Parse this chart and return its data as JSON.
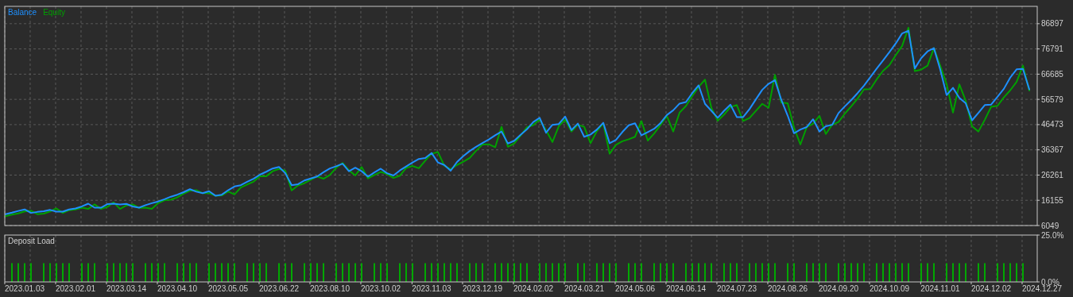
{
  "chart_data": [
    {
      "type": "line",
      "legend": "top left",
      "grid": true,
      "tick_labels": "y",
      "ylim": [
        6049,
        93845
      ],
      "yticks": [
        6049,
        16155,
        26261,
        36367,
        46473,
        56579,
        66685,
        76791,
        86897
      ],
      "categories": [
        null,
        null,
        null,
        "2023.01.03",
        null,
        null,
        null,
        null,
        null,
        null,
        null,
        "2023.02.01",
        null,
        null,
        null,
        null,
        null,
        null,
        null,
        "2023.03.14",
        null,
        null,
        null,
        null,
        null,
        null,
        null,
        "2023.04.10",
        null,
        null,
        null,
        null,
        null,
        null,
        null,
        "2023.05.05",
        null,
        null,
        null,
        null,
        null,
        null,
        null,
        "2023.06.22",
        null,
        null,
        null,
        null,
        null,
        null,
        null,
        "2023.08.10",
        null,
        null,
        null,
        null,
        null,
        null,
        null,
        "2023.10.02",
        null,
        null,
        null,
        null,
        null,
        null,
        null,
        "2023.11.03",
        null,
        null,
        null,
        null,
        null,
        null,
        null,
        "2023.12.19",
        null,
        null,
        null,
        null,
        null,
        null,
        null,
        "2024.02.02",
        null,
        null,
        null,
        null,
        null,
        null,
        null,
        "2024.03.21",
        null,
        null,
        null,
        null,
        null,
        null,
        null,
        "2024.05.06",
        null,
        null,
        null,
        null,
        null,
        null,
        null,
        "2024.06.14",
        null,
        null,
        null,
        null,
        null,
        null,
        null,
        "2024.07.23",
        null,
        null,
        null,
        null,
        null,
        null,
        null,
        "2024.08.26",
        null,
        null,
        null,
        null,
        null,
        null,
        null,
        "2024.09.20",
        null,
        null,
        null,
        null,
        null,
        null,
        null,
        "2024.10.09",
        null,
        null,
        null,
        null,
        null,
        null,
        null,
        "2024.11.01",
        null,
        null,
        null,
        null,
        null,
        null,
        null,
        "2024.12.02",
        null,
        null,
        null,
        null,
        null,
        null,
        null,
        "2024.12.27",
        null
      ],
      "series": [
        {
          "name": "Balance",
          "color": "#1e90ff",
          "values": [
            10600,
            11200,
            11900,
            12500,
            11100,
            11500,
            11800,
            12300,
            11600,
            11600,
            12500,
            12900,
            13700,
            14800,
            13200,
            13200,
            14600,
            14800,
            14500,
            14700,
            13700,
            13200,
            14200,
            15000,
            15700,
            16600,
            17600,
            18400,
            19400,
            20600,
            19600,
            19000,
            19800,
            18000,
            18400,
            20200,
            21700,
            22200,
            23600,
            24800,
            26400,
            27600,
            28900,
            29500,
            27000,
            22200,
            22600,
            24100,
            24900,
            25700,
            27400,
            28900,
            29800,
            30800,
            27800,
            29200,
            27800,
            25600,
            27300,
            28800,
            27000,
            26100,
            28100,
            29700,
            31300,
            32700,
            33100,
            35100,
            31300,
            30300,
            28000,
            31500,
            33900,
            35900,
            37600,
            39100,
            40500,
            42200,
            43700,
            38900,
            40000,
            42400,
            44600,
            47500,
            49200,
            43200,
            46400,
            46700,
            49700,
            44300,
            46900,
            41600,
            42500,
            44500,
            47200,
            39000,
            40400,
            43500,
            46200,
            47000,
            42200,
            43500,
            44800,
            47100,
            50300,
            52200,
            54900,
            55500,
            59100,
            62200,
            54800,
            52000,
            49200,
            52000,
            54500,
            49500,
            49500,
            52700,
            56600,
            60400,
            62800,
            64300,
            56400,
            50100,
            43000,
            44500,
            45500,
            48600,
            43700,
            45800,
            46400,
            51100,
            53800,
            56300,
            59100,
            62100,
            65500,
            68900,
            72200,
            75500,
            79000,
            83000,
            84100,
            69000,
            73100,
            75800,
            77100,
            68500,
            58300,
            61200,
            57200,
            55000,
            48200,
            51200,
            54300,
            54500,
            57600,
            60800,
            65300,
            68600,
            68800,
            60600,
            null,
            null,
            null
          ]
        },
        {
          "name": "Equity",
          "color": "#00a000",
          "values": [
            9800,
            10400,
            10900,
            11700,
            12000,
            10600,
            10800,
            11700,
            12900,
            11100,
            12200,
            12500,
            13200,
            12700,
            14500,
            12700,
            13500,
            15300,
            12700,
            14100,
            14500,
            13100,
            13200,
            12700,
            15000,
            16200,
            16400,
            17300,
            18800,
            20000,
            20200,
            19000,
            19000,
            18000,
            18100,
            19700,
            18500,
            21300,
            22500,
            23600,
            25800,
            25800,
            27800,
            28700,
            28000,
            20100,
            22100,
            23000,
            24400,
            25700,
            24800,
            26300,
            29200,
            31100,
            28200,
            26100,
            29500,
            24900,
            26300,
            27500,
            26700,
            25100,
            26000,
            29100,
            29900,
            29000,
            32000,
            34800,
            35500,
            30000,
            28600,
            30300,
            31600,
            33100,
            36000,
            38500,
            38600,
            37400,
            45600,
            37600,
            38900,
            42100,
            45400,
            46300,
            48500,
            44200,
            39500,
            45800,
            48500,
            43700,
            46400,
            45600,
            39000,
            43900,
            47000,
            34800,
            38400,
            39800,
            40600,
            41600,
            47900,
            40100,
            42900,
            46300,
            50000,
            43700,
            51300,
            53900,
            57900,
            61600,
            64500,
            53200,
            48000,
            50500,
            53500,
            54300,
            47900,
            49100,
            52000,
            54800,
            53200,
            66400,
            55300,
            55000,
            45300,
            38500,
            45500,
            46800,
            50000,
            42700,
            46400,
            47500,
            50900,
            53800,
            56900,
            60600,
            60700,
            64600,
            68000,
            70300,
            74300,
            78000,
            85300,
            67900,
            68500,
            70100,
            77100,
            70000,
            62700,
            51300,
            62600,
            56000,
            45800,
            43700,
            48400,
            53600,
            54000,
            57400,
            60200,
            63600,
            70100,
            60100,
            null,
            null,
            null
          ]
        }
      ]
    },
    {
      "type": "bar",
      "title": "Deposit Load",
      "grid": "x",
      "color": "#00a800",
      "ylim": [
        0,
        25
      ],
      "yticks": [
        {
          "value": 0,
          "label": "0.0%"
        },
        {
          "value": 25,
          "label": "25.0%"
        }
      ],
      "categories": [
        null,
        null,
        null,
        "2023.01.03",
        null,
        null,
        null,
        null,
        null,
        null,
        null,
        "2023.02.01",
        null,
        null,
        null,
        null,
        null,
        null,
        null,
        "2023.03.14",
        null,
        null,
        null,
        null,
        null,
        null,
        null,
        "2023.04.10",
        null,
        null,
        null,
        null,
        null,
        null,
        null,
        "2023.05.05",
        null,
        null,
        null,
        null,
        null,
        null,
        null,
        "2023.06.22",
        null,
        null,
        null,
        null,
        null,
        null,
        null,
        "2023.08.10",
        null,
        null,
        null,
        null,
        null,
        null,
        null,
        "2023.10.02",
        null,
        null,
        null,
        null,
        null,
        null,
        null,
        "2023.11.03",
        null,
        null,
        null,
        null,
        null,
        null,
        null,
        "2023.12.19",
        null,
        null,
        null,
        null,
        null,
        null,
        null,
        "2024.02.02",
        null,
        null,
        null,
        null,
        null,
        null,
        null,
        "2024.03.21",
        null,
        null,
        null,
        null,
        null,
        null,
        null,
        "2024.05.06",
        null,
        null,
        null,
        null,
        null,
        null,
        null,
        "2024.06.14",
        null,
        null,
        null,
        null,
        null,
        null,
        null,
        "2024.07.23",
        null,
        null,
        null,
        null,
        null,
        null,
        null,
        "2024.08.26",
        null,
        null,
        null,
        null,
        null,
        null,
        null,
        "2024.09.20",
        null,
        null,
        null,
        null,
        null,
        null,
        null,
        "2024.10.09",
        null,
        null,
        null,
        null,
        null,
        null,
        null,
        "2024.11.01",
        null,
        null,
        null,
        null,
        null,
        null,
        null,
        "2024.12.02",
        null,
        null,
        null,
        null,
        null,
        null,
        null,
        "2024.12.27",
        null
      ],
      "values": [
        null,
        10,
        10,
        10,
        10,
        null,
        10,
        10,
        10,
        10,
        10,
        null,
        10,
        10,
        10,
        null,
        10,
        10,
        10,
        10,
        10,
        null,
        10,
        10,
        10,
        10,
        null,
        10,
        10,
        10,
        10,
        null,
        10,
        10,
        10,
        10,
        10,
        null,
        10,
        10,
        10,
        10,
        null,
        10,
        10,
        10,
        null,
        10,
        10,
        10,
        10,
        null,
        10,
        10,
        10,
        10,
        10,
        null,
        10,
        10,
        10,
        null,
        10,
        10,
        10,
        null,
        10,
        10,
        10,
        10,
        10,
        10,
        null,
        10,
        10,
        10,
        null,
        10,
        10,
        10,
        10,
        10,
        10,
        null,
        10,
        10,
        10,
        10,
        10,
        null,
        10,
        10,
        null,
        10,
        10,
        10,
        10,
        null,
        10,
        10,
        10,
        null,
        10,
        10,
        10,
        10,
        null,
        10,
        10,
        10,
        10,
        10,
        null,
        10,
        10,
        10,
        null,
        10,
        10,
        10,
        10,
        10,
        null,
        10,
        10,
        null,
        10,
        10,
        10,
        10,
        null,
        10,
        10,
        10,
        10,
        10,
        null,
        10,
        10,
        10,
        10,
        10,
        10,
        null,
        10,
        10,
        10,
        null,
        10,
        10,
        10,
        10,
        null,
        10,
        10,
        null,
        10,
        10,
        10,
        10,
        10,
        null,
        null,
        null,
        null
      ]
    }
  ]
}
